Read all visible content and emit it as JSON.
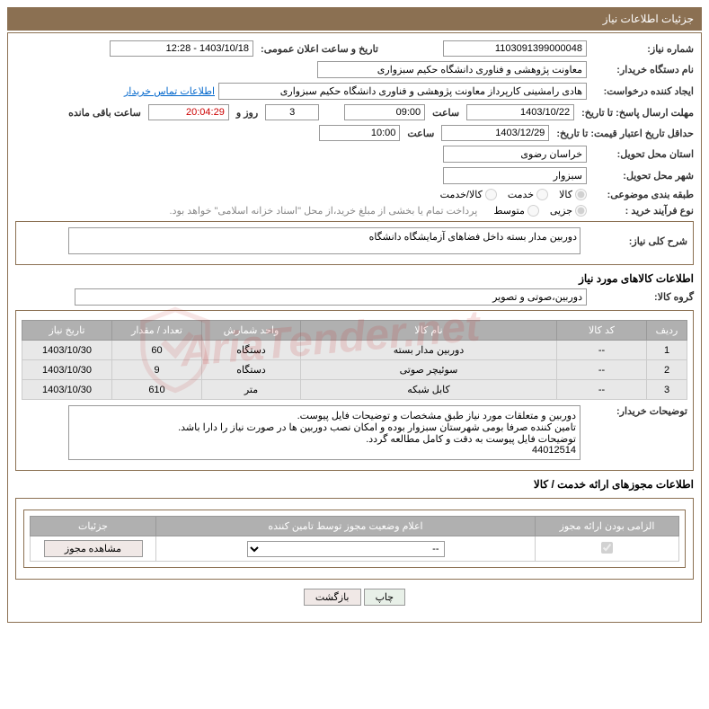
{
  "header": {
    "title": "جزئیات اطلاعات نیاز"
  },
  "fields": {
    "need_number_label": "شماره نیاز:",
    "need_number": "1103091399000048",
    "announce_datetime_label": "تاریخ و ساعت اعلان عمومی:",
    "announce_datetime": "1403/10/18 - 12:28",
    "buyer_org_label": "نام دستگاه خریدار:",
    "buyer_org": "معاونت پژوهشی و فناوری دانشگاه حکیم سبزواری",
    "requester_label": "ایجاد کننده درخواست:",
    "requester": "هادی رامشینی کارپرداز معاونت پژوهشی و فناوری دانشگاه حکیم سبزواری",
    "contact_link": "اطلاعات تماس خریدار",
    "deadline_label": "مهلت ارسال پاسخ: تا تاریخ:",
    "deadline_date": "1403/10/22",
    "time_label": "ساعت",
    "deadline_time": "09:00",
    "days_remaining": "3",
    "days_and": "روز و",
    "time_remaining": "20:04:29",
    "remaining_suffix": "ساعت باقی مانده",
    "validity_label": "حداقل تاریخ اعتبار قیمت: تا تاریخ:",
    "validity_date": "1403/12/29",
    "validity_time": "10:00",
    "province_label": "استان محل تحویل:",
    "province": "خراسان رضوی",
    "city_label": "شهر محل تحویل:",
    "city": "سبزوار",
    "category_label": "طبقه بندی موضوعی:",
    "cat_goods": "کالا",
    "cat_service": "خدمت",
    "cat_both": "کالا/خدمت",
    "process_label": "نوع فرآیند خرید :",
    "proc_partial": "جزیی",
    "proc_medium": "متوسط",
    "process_note": "پرداخت تمام یا بخشی از مبلغ خرید،از محل \"اسناد خزانه اسلامی\" خواهد بود.",
    "desc_label": "شرح کلی نیاز:",
    "desc": "دوربین مدار بسته داخل فضاهای آزمایشگاه دانشگاه",
    "goods_section_title": "اطلاعات کالاهای مورد نیاز",
    "goods_group_label": "گروه کالا:",
    "goods_group": "دوربین،صوتی و تصویر",
    "buyer_notes_label": "توضیحات خریدار:",
    "buyer_notes_l1": "دوربین و متعلقات مورد نیاز طبق مشخصات و توضیحات فایل پیوست.",
    "buyer_notes_l2": "تامین کننده صرفا بومی شهرستان سبزوار بوده و امکان نصب دوربین ها در صورت نیاز را دارا باشد.",
    "buyer_notes_l3": "توضیحات فایل پیوست به دقت و کامل مطالعه گردد.",
    "buyer_notes_l4": "44012514",
    "permit_section_title": "اطلاعات مجوزهای ارائه خدمت / کالا",
    "view_permit_btn": "مشاهده مجوز",
    "print_btn": "چاپ",
    "back_btn": "بازگشت"
  },
  "goods_table": {
    "headers": {
      "row": "ردیف",
      "code": "کد کالا",
      "name": "نام کالا",
      "unit": "واحد شمارش",
      "qty": "تعداد / مقدار",
      "date": "تاریخ نیاز"
    },
    "rows": [
      {
        "row": "1",
        "code": "--",
        "name": "دوربین مدار بسته",
        "unit": "دستگاه",
        "qty": "60",
        "date": "1403/10/30"
      },
      {
        "row": "2",
        "code": "--",
        "name": "سوئیچر صوتی",
        "unit": "دستگاه",
        "qty": "9",
        "date": "1403/10/30"
      },
      {
        "row": "3",
        "code": "--",
        "name": "کابل شبکه",
        "unit": "متر",
        "qty": "610",
        "date": "1403/10/30"
      }
    ]
  },
  "permit_table": {
    "headers": {
      "mandatory": "الزامی بودن ارائه مجوز",
      "status": "اعلام وضعیت مجوز توسط تامین کننده",
      "details": "جزئیات"
    },
    "status_value": "--"
  },
  "colors": {
    "header_bg": "#8b7052",
    "border": "#8b7052",
    "th_bg": "#b0b0b0",
    "td_bg": "#e8e8e8",
    "link": "#0066cc"
  }
}
